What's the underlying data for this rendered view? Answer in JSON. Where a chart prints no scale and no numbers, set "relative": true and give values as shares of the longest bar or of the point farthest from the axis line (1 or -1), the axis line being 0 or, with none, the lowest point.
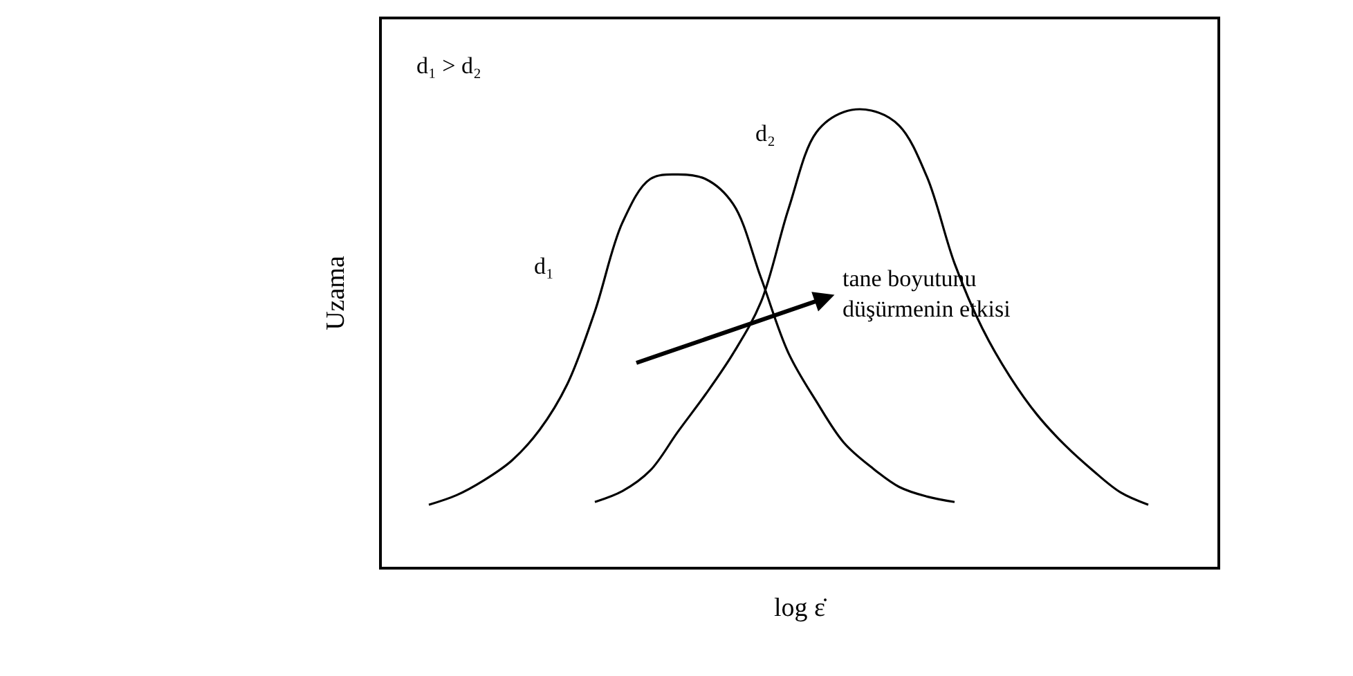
{
  "chart_data": {
    "type": "line",
    "relative": true,
    "xlabel": "log ε̇",
    "ylabel": "Uzama",
    "categories": [
      null,
      null,
      null,
      null,
      null,
      null,
      null,
      null,
      null,
      null,
      null,
      null,
      null,
      null,
      null,
      null,
      null,
      null,
      null,
      null,
      null,
      null,
      null,
      null,
      null,
      null,
      null
    ],
    "series": [
      {
        "color": "#000000",
        "values": [
          0.136,
          0.157,
          0.19,
          0.233,
          0.3,
          0.4,
          0.56,
          0.755,
          0.85,
          0.86,
          0.85,
          0.795,
          0.634,
          0.468,
          0.363,
          0.272,
          0.218,
          0.175,
          0.154,
          0.142,
          null,
          null,
          null,
          null,
          null,
          null,
          null
        ]
      },
      {
        "color": "#000000",
        "values": [
          null,
          null,
          null,
          null,
          null,
          null,
          0.142,
          0.166,
          0.211,
          0.296,
          0.378,
          0.468,
          0.58,
          0.785,
          0.952,
          0.997,
          1,
          0.967,
          0.855,
          0.665,
          0.523,
          0.417,
          0.332,
          0.266,
          0.211,
          0.163,
          0.136
        ]
      }
    ],
    "annotations": [
      "d₁ > d₂",
      "d₁",
      "d₂",
      "tane boyutunu\ndüşürmenin etkisi"
    ],
    "marker": "none",
    "line_style": "solid"
  }
}
